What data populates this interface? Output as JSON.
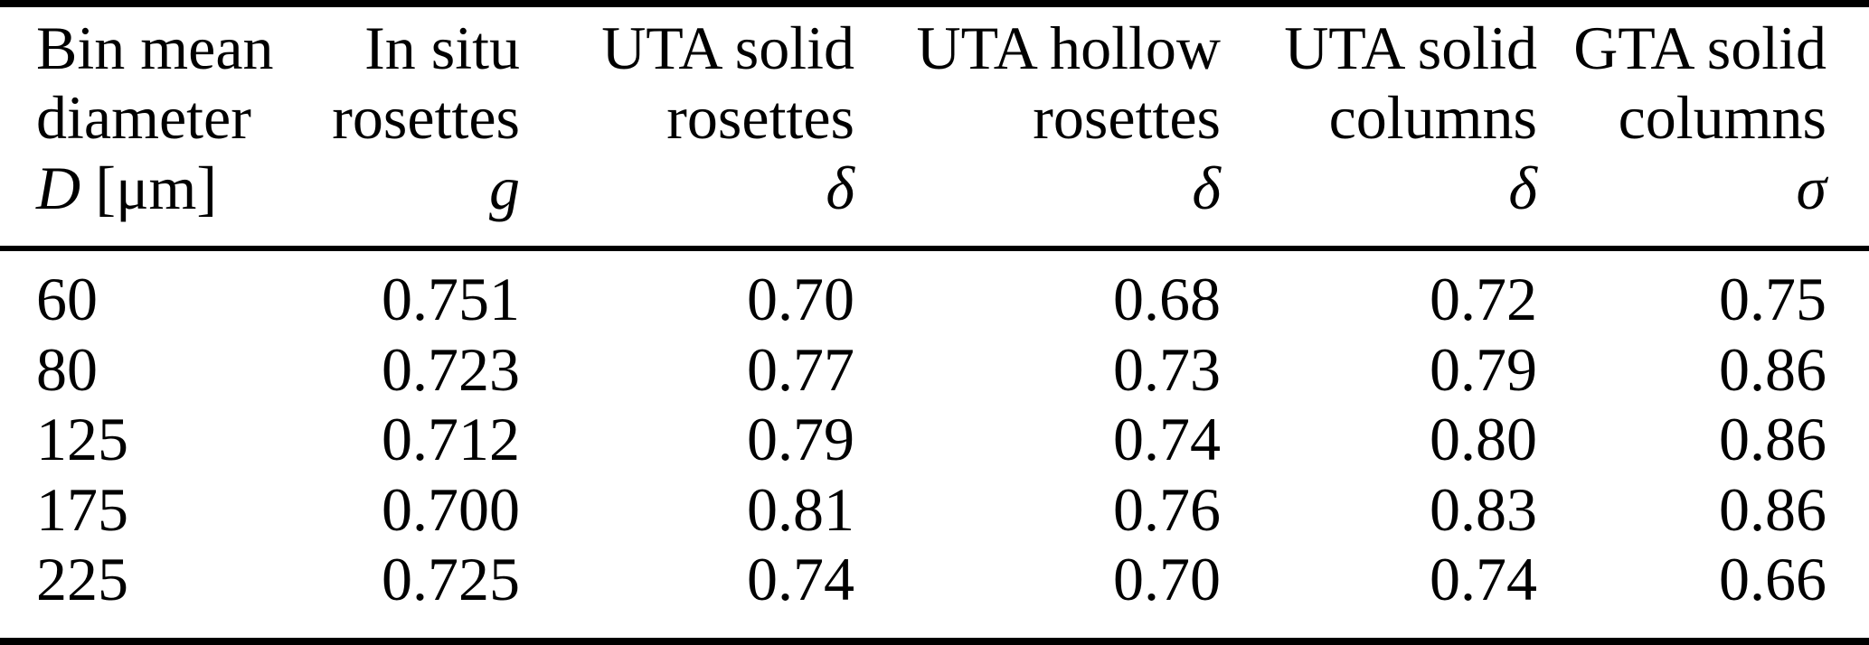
{
  "colors": {
    "text": "#000000",
    "background": "#ffffff",
    "rule": "#000000"
  },
  "table": {
    "columns": [
      {
        "title_lines": [
          "Bin mean",
          "diameter"
        ],
        "symbol": "D",
        "unit": "[μm]"
      },
      {
        "title_lines": [
          "In situ",
          "rosettes"
        ],
        "symbol": "g",
        "unit": ""
      },
      {
        "title_lines": [
          "UTA solid",
          "rosettes"
        ],
        "symbol": "δ",
        "unit": ""
      },
      {
        "title_lines": [
          "UTA hollow",
          "rosettes"
        ],
        "symbol": "δ",
        "unit": ""
      },
      {
        "title_lines": [
          "UTA solid",
          "columns"
        ],
        "symbol": "δ",
        "unit": ""
      },
      {
        "title_lines": [
          "GTA solid",
          "columns"
        ],
        "symbol": "σ",
        "unit": ""
      }
    ],
    "rows": [
      [
        "60",
        "0.751",
        "0.70",
        "0.68",
        "0.72",
        "0.75"
      ],
      [
        "80",
        "0.723",
        "0.77",
        "0.73",
        "0.79",
        "0.86"
      ],
      [
        "125",
        "0.712",
        "0.79",
        "0.74",
        "0.80",
        "0.86"
      ],
      [
        "175",
        "0.700",
        "0.81",
        "0.76",
        "0.83",
        "0.86"
      ],
      [
        "225",
        "0.725",
        "0.74",
        "0.70",
        "0.74",
        "0.66"
      ]
    ]
  }
}
